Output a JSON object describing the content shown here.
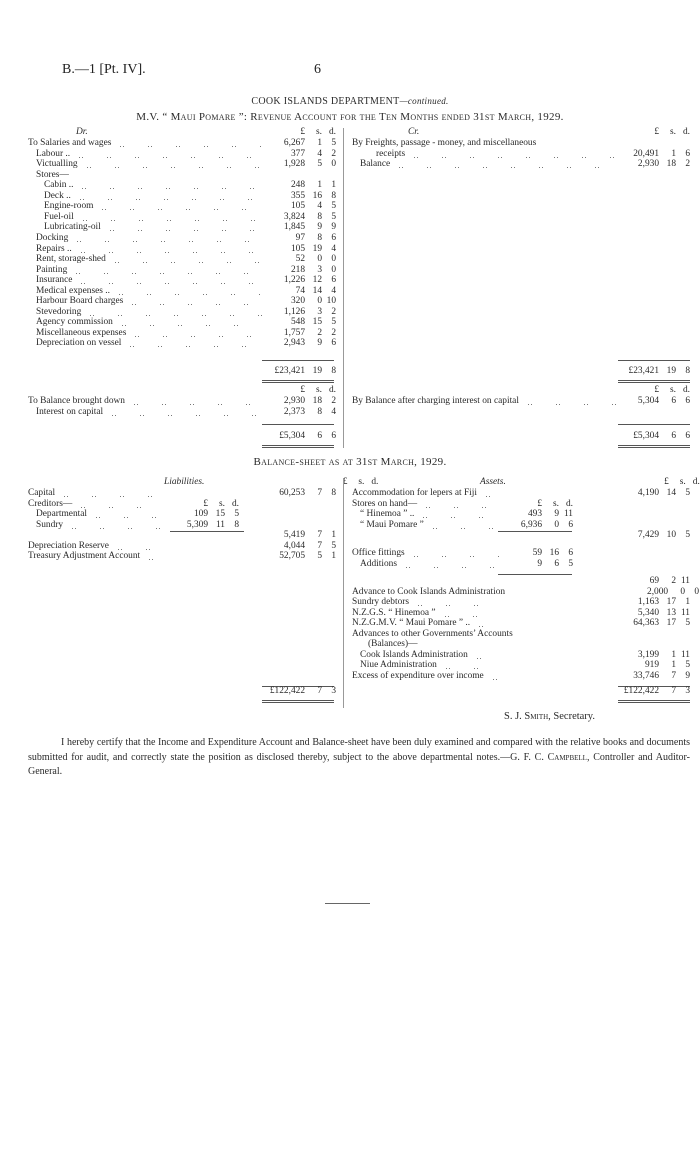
{
  "page_header": {
    "reference": "B.—1 [Pt. IV].",
    "page_number": "6"
  },
  "department_title": {
    "main": "COOK ISLANDS DEPARTMENT",
    "suffix": "—continued."
  },
  "revenue_title": "M.V. “ Maui Pomare ”: Revenue Account for the Ten Months ended 31st March, 1929.",
  "columns": {
    "pounds": "£",
    "shillings": "s.",
    "pence": "d."
  },
  "revenue": {
    "dr_heading": "Dr.",
    "cr_heading": "Cr.",
    "dr_rows": [
      {
        "label": "To Salaries and wages",
        "level": 0,
        "l": "6,267",
        "s": "1",
        "d": "5"
      },
      {
        "label": "Labour ..",
        "level": 1,
        "l": "377",
        "s": "4",
        "d": "2"
      },
      {
        "label": "Victualling",
        "level": 1,
        "l": "1,928",
        "s": "5",
        "d": "0"
      },
      {
        "label": "Stores—",
        "level": 1
      },
      {
        "label": "Cabin ..",
        "level": 2,
        "l": "248",
        "s": "1",
        "d": "1"
      },
      {
        "label": "Deck ..",
        "level": 2,
        "l": "355",
        "s": "16",
        "d": "8"
      },
      {
        "label": "Engine-room",
        "level": 2,
        "l": "105",
        "s": "4",
        "d": "5"
      },
      {
        "label": "Fuel-oil",
        "level": 2,
        "l": "3,824",
        "s": "8",
        "d": "5"
      },
      {
        "label": "Lubricating-oil",
        "level": 2,
        "l": "1,845",
        "s": "9",
        "d": "9"
      },
      {
        "label": "Docking",
        "level": 1,
        "l": "97",
        "s": "8",
        "d": "6"
      },
      {
        "label": "Repairs ..",
        "level": 1,
        "l": "105",
        "s": "19",
        "d": "4"
      },
      {
        "label": "Rent, storage-shed",
        "level": 1,
        "l": "52",
        "s": "0",
        "d": "0"
      },
      {
        "label": "Painting",
        "level": 1,
        "l": "218",
        "s": "3",
        "d": "0"
      },
      {
        "label": "Insurance",
        "level": 1,
        "l": "1,226",
        "s": "12",
        "d": "6"
      },
      {
        "label": "Medical expenses ..",
        "level": 1,
        "l": "74",
        "s": "14",
        "d": "4"
      },
      {
        "label": "Harbour Board charges",
        "level": 1,
        "l": "320",
        "s": "0",
        "d": "10"
      },
      {
        "label": "Stevedoring",
        "level": 1,
        "l": "1,126",
        "s": "3",
        "d": "2"
      },
      {
        "label": "Agency commission",
        "level": 1,
        "l": "548",
        "s": "15",
        "d": "5"
      },
      {
        "label": "Miscellaneous expenses",
        "level": 1,
        "l": "1,757",
        "s": "2",
        "d": "2"
      },
      {
        "label": "Depreciation on vessel",
        "level": 1,
        "l": "2,943",
        "s": "9",
        "d": "6"
      }
    ],
    "cr_rows": [
      {
        "label": "By Freights, passage - money, and miscellaneous",
        "level": 0
      },
      {
        "label": "receipts",
        "level": 3,
        "l": "20,491",
        "s": "1",
        "d": "6"
      },
      {
        "label": "Balance",
        "level": 1,
        "l": "2,930",
        "s": "18",
        "d": "2"
      }
    ],
    "total": {
      "l": "£23,421",
      "s": "19",
      "d": "8"
    },
    "dr2_rows": [
      {
        "label": "To Balance brought down",
        "level": 0,
        "l": "2,930",
        "s": "18",
        "d": "2"
      },
      {
        "label": "Interest on capital",
        "level": 1,
        "l": "2,373",
        "s": "8",
        "d": "4"
      }
    ],
    "cr2_rows": [
      {
        "label": "By Balance after charging interest on capital",
        "level": 0,
        "l": "5,304",
        "s": "6",
        "d": "6"
      }
    ],
    "total2": {
      "l": "£5,304",
      "s": "6",
      "d": "6"
    }
  },
  "balance_title": "Balance-sheet as at 31st March, 1929.",
  "balance": {
    "liabilities_heading": "Liabilities.",
    "assets_heading": "Assets.",
    "liabilities_rows": [
      {
        "label": "Capital",
        "level": 0,
        "l": "60,253",
        "s": "7",
        "d": "8"
      },
      {
        "label": "Creditors—",
        "level": 0,
        "sub": {
          "l": "£",
          "s": "s.",
          "d": "d."
        }
      },
      {
        "label": "Departmental",
        "level": 1,
        "sub": {
          "l": "109",
          "s": "15",
          "d": "5"
        }
      },
      {
        "label": "Sundry",
        "level": 1,
        "sub": {
          "l": "5,309",
          "s": "11",
          "d": "8"
        }
      },
      {
        "label": "",
        "level": 0,
        "l": "5,419",
        "s": "7",
        "d": "1"
      },
      {
        "label": "Depreciation Reserve",
        "level": 0,
        "l": "4,044",
        "s": "7",
        "d": "5"
      },
      {
        "label": "Treasury Adjustment Account",
        "level": 0,
        "l": "52,705",
        "s": "5",
        "d": "1"
      }
    ],
    "assets_rows": [
      {
        "label": "Accommodation for lepers at Fiji",
        "level": 0,
        "l": "4,190",
        "s": "14",
        "d": "5"
      },
      {
        "label": "Stores on hand—",
        "level": 0,
        "sub": {
          "l": "£",
          "s": "s.",
          "d": "d."
        }
      },
      {
        "label": "“ Hinemoa ” ..",
        "level": 1,
        "sub": {
          "l": "493",
          "s": "9",
          "d": "11"
        }
      },
      {
        "label": "“ Maui Pomare ”",
        "level": 1,
        "sub": {
          "l": "6,936",
          "s": "0",
          "d": "6"
        }
      },
      {
        "label": "",
        "level": 0,
        "l": "7,429",
        "s": "10",
        "d": "5"
      },
      {
        "label": "Office fittings",
        "level": 0,
        "sub": {
          "l": "59",
          "s": "16",
          "d": "6"
        }
      },
      {
        "label": "Additions",
        "level": 1,
        "sub": {
          "l": "9",
          "s": "6",
          "d": "5"
        }
      },
      {
        "label": "",
        "level": 0,
        "l": "69",
        "s": "2",
        "d": "11"
      },
      {
        "label": "Advance to Cook Islands Administration",
        "level": 0,
        "l": "2,000",
        "s": "0",
        "d": "0"
      },
      {
        "label": "Sundry debtors",
        "level": 0,
        "l": "1,163",
        "s": "17",
        "d": "1"
      },
      {
        "label": "N.Z.G.S. “ Hinemoa ”",
        "level": 0,
        "l": "5,340",
        "s": "13",
        "d": "11"
      },
      {
        "label": "N.Z.G.M.V. “ Maui Pomare ” ..",
        "level": 0,
        "l": "64,363",
        "s": "17",
        "d": "5"
      },
      {
        "label": "Advances   to   other   Governments’   Accounts",
        "level": 0
      },
      {
        "label": "(Balances)—",
        "level": 2
      },
      {
        "label": "Cook Islands Administration",
        "level": 1,
        "l": "3,199",
        "s": "1",
        "d": "11"
      },
      {
        "label": "Niue Administration",
        "level": 1,
        "l": "919",
        "s": "1",
        "d": "5"
      },
      {
        "label": "Excess of expenditure over income",
        "level": 0,
        "l": "33,746",
        "s": "7",
        "d": "9"
      }
    ],
    "total": {
      "l": "£122,422",
      "s": "7",
      "d": "3"
    }
  },
  "signature": {
    "name": "S. J. Smith",
    "title": ", Secretary."
  },
  "certificate": {
    "text": "I hereby certify that the Income and Expenditure Account and Balance-sheet have been duly examined and compared with the relative books and documents submitted for audit, and correctly state the position as disclosed thereby, subject to the above departmental notes.—",
    "signatory": "G. F. C. Campbell",
    "signatory_title": ", Controller and Auditor-General."
  }
}
